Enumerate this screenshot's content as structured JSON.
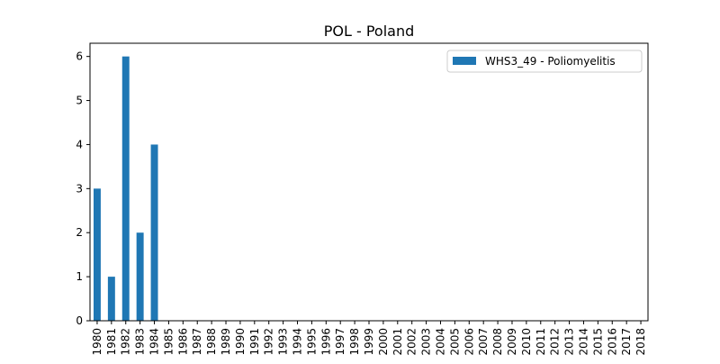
{
  "chart_data": {
    "type": "bar",
    "title": "POL - Poland",
    "xlabel": "",
    "ylabel": "",
    "categories": [
      "1980",
      "1981",
      "1982",
      "1983",
      "1984",
      "1985",
      "1986",
      "1987",
      "1988",
      "1989",
      "1990",
      "1991",
      "1992",
      "1993",
      "1994",
      "1995",
      "1996",
      "1997",
      "1998",
      "1999",
      "2000",
      "2001",
      "2002",
      "2003",
      "2004",
      "2005",
      "2006",
      "2007",
      "2008",
      "2009",
      "2010",
      "2011",
      "2012",
      "2013",
      "2014",
      "2015",
      "2016",
      "2017",
      "2018"
    ],
    "series": [
      {
        "name": "WHS3_49 - Poliomyelitis",
        "color": "#1f77b4",
        "values": [
          3,
          1,
          6,
          2,
          4,
          0,
          0,
          0,
          0,
          0,
          0,
          0,
          0,
          0,
          0,
          0,
          0,
          0,
          0,
          0,
          0,
          0,
          0,
          0,
          0,
          0,
          0,
          0,
          0,
          0,
          0,
          0,
          0,
          0,
          0,
          0,
          0,
          0,
          0
        ]
      }
    ],
    "ylim": [
      0,
      6.3
    ],
    "yticks": [
      0,
      1,
      2,
      3,
      4,
      5,
      6
    ],
    "grid": false,
    "legend_position": "top-right"
  }
}
